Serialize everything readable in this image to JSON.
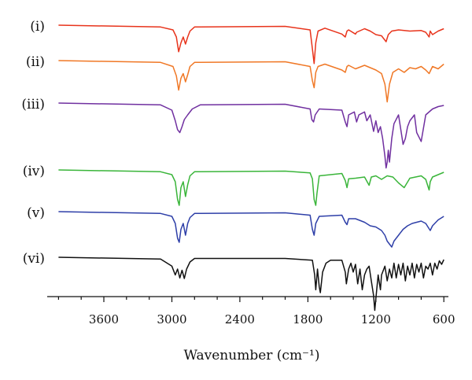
{
  "chart_data": {
    "type": "line",
    "title": "",
    "xlabel": "Wavenumber (cm⁻¹)",
    "ylabel": "",
    "xlim": [
      4100,
      560
    ],
    "x_reversed": true,
    "y_axis_shown": false,
    "grid": false,
    "legend": "none",
    "x_ticks": [
      3600,
      3000,
      2400,
      1800,
      1200,
      600
    ],
    "x_tick_labels": [
      "3600",
      "3000",
      "2400",
      "1800",
      "1200",
      "600"
    ],
    "series": [
      {
        "name": "(i)",
        "color": "#e8341c",
        "x": [
          4000,
          3100,
          2990,
          2960,
          2940,
          2920,
          2900,
          2880,
          2860,
          2840,
          2800,
          2000,
          1780,
          1760,
          1745,
          1730,
          1710,
          1650,
          1500,
          1470,
          1455,
          1440,
          1380,
          1370,
          1300,
          1250,
          1200,
          1150,
          1110,
          1090,
          1060,
          1000,
          900,
          800,
          760,
          730,
          720,
          700,
          650,
          600
        ],
        "y": [
          0,
          0.3,
          0.8,
          2.0,
          4.5,
          3.0,
          2.0,
          3.2,
          2.0,
          1.0,
          0.3,
          0.2,
          0.8,
          4.0,
          6.5,
          3.0,
          1.0,
          0.5,
          1.5,
          2.0,
          1.0,
          0.8,
          1.5,
          1.2,
          0.6,
          1.0,
          1.6,
          1.8,
          2.8,
          1.6,
          1.0,
          0.8,
          1.0,
          0.9,
          1.2,
          2.0,
          1.0,
          1.6,
          1.0,
          0.6
        ]
      },
      {
        "name": "(ii)",
        "color": "#f07826",
        "x": [
          4000,
          3100,
          2990,
          2960,
          2940,
          2920,
          2900,
          2880,
          2860,
          2840,
          2800,
          2000,
          1780,
          1760,
          1745,
          1730,
          1710,
          1650,
          1500,
          1470,
          1455,
          1440,
          1380,
          1300,
          1250,
          1200,
          1150,
          1120,
          1100,
          1080,
          1050,
          1000,
          950,
          900,
          850,
          800,
          760,
          730,
          700,
          650,
          600
        ],
        "y": [
          0,
          0.3,
          1.0,
          2.6,
          5.0,
          3.0,
          2.2,
          3.6,
          2.4,
          1.0,
          0.3,
          0.2,
          1.0,
          3.4,
          4.6,
          2.0,
          1.0,
          0.6,
          1.6,
          2.0,
          1.0,
          0.8,
          1.4,
          0.8,
          1.2,
          1.6,
          2.2,
          4.0,
          7.0,
          4.0,
          2.0,
          1.4,
          2.0,
          1.2,
          1.4,
          1.0,
          1.6,
          2.2,
          1.0,
          1.4,
          0.6
        ]
      },
      {
        "name": "(iii)",
        "color": "#7030a0",
        "x": [
          4000,
          3100,
          3000,
          2970,
          2950,
          2930,
          2910,
          2890,
          2860,
          2820,
          2750,
          2000,
          1780,
          1765,
          1750,
          1735,
          1700,
          1500,
          1470,
          1455,
          1440,
          1390,
          1370,
          1350,
          1300,
          1280,
          1250,
          1220,
          1200,
          1180,
          1160,
          1140,
          1120,
          1110,
          1100,
          1090,
          1080,
          1060,
          1040,
          1000,
          960,
          940,
          920,
          900,
          860,
          840,
          800,
          760,
          700,
          650,
          600
        ],
        "y": [
          0,
          0.3,
          1.2,
          3.0,
          4.5,
          5.0,
          4.0,
          2.8,
          2.0,
          1.0,
          0.3,
          0.2,
          1.0,
          2.8,
          3.2,
          2.0,
          1.0,
          1.2,
          3.2,
          4.0,
          2.0,
          1.5,
          3.2,
          2.0,
          1.5,
          3.0,
          2.0,
          4.8,
          3.0,
          5.0,
          4.0,
          6.0,
          9.0,
          11.0,
          10.0,
          8.0,
          10.0,
          6.0,
          3.5,
          2.0,
          7.0,
          6.0,
          4.0,
          3.0,
          2.0,
          5.0,
          6.5,
          2.0,
          1.0,
          0.6,
          0.4
        ]
      },
      {
        "name": "(iv)",
        "color": "#3ab53a",
        "x": [
          4000,
          3100,
          3000,
          2970,
          2950,
          2935,
          2920,
          2900,
          2880,
          2860,
          2840,
          2800,
          2000,
          1780,
          1760,
          1745,
          1730,
          1720,
          1700,
          1500,
          1470,
          1455,
          1440,
          1380,
          1300,
          1260,
          1240,
          1200,
          1150,
          1100,
          1050,
          1000,
          950,
          900,
          800,
          760,
          730,
          720,
          700,
          650,
          600
        ],
        "y": [
          0,
          0.3,
          0.8,
          2.0,
          5.0,
          6.0,
          3.0,
          2.0,
          4.5,
          2.5,
          1.0,
          0.3,
          0.2,
          0.5,
          1.5,
          5.0,
          6.0,
          4.0,
          1.0,
          0.6,
          1.8,
          3.0,
          1.5,
          1.4,
          1.2,
          2.6,
          1.2,
          1.0,
          1.6,
          1.0,
          1.2,
          2.2,
          3.0,
          1.4,
          1.0,
          1.6,
          3.4,
          2.0,
          1.2,
          0.8,
          0.4
        ]
      },
      {
        "name": "(v)",
        "color": "#2e3fa8",
        "x": [
          4000,
          3100,
          3000,
          2970,
          2950,
          2935,
          2920,
          2900,
          2880,
          2860,
          2840,
          2800,
          2000,
          1780,
          1760,
          1745,
          1730,
          1700,
          1500,
          1470,
          1455,
          1440,
          1380,
          1300,
          1250,
          1200,
          1150,
          1120,
          1100,
          1060,
          1040,
          1000,
          960,
          920,
          880,
          800,
          760,
          720,
          700,
          650,
          600
        ],
        "y": [
          0,
          0.3,
          0.8,
          2.0,
          4.5,
          5.2,
          3.0,
          2.0,
          4.0,
          2.0,
          1.0,
          0.3,
          0.2,
          0.6,
          3.0,
          4.0,
          2.0,
          0.8,
          0.6,
          1.8,
          2.2,
          1.2,
          1.2,
          1.8,
          2.4,
          2.6,
          3.2,
          4.0,
          5.0,
          6.0,
          5.0,
          4.0,
          3.0,
          2.4,
          2.0,
          1.6,
          2.0,
          3.2,
          2.4,
          1.4,
          0.8
        ]
      },
      {
        "name": "(vi)",
        "color": "#111111",
        "x": [
          4000,
          3100,
          3000,
          2970,
          2950,
          2930,
          2910,
          2890,
          2870,
          2840,
          2800,
          2000,
          1760,
          1740,
          1730,
          1715,
          1700,
          1690,
          1670,
          1640,
          1600,
          1500,
          1470,
          1460,
          1440,
          1420,
          1400,
          1380,
          1360,
          1340,
          1320,
          1300,
          1280,
          1260,
          1240,
          1220,
          1210,
          1200,
          1180,
          1160,
          1150,
          1120,
          1100,
          1080,
          1060,
          1040,
          1020,
          1000,
          980,
          960,
          940,
          920,
          900,
          880,
          860,
          840,
          820,
          800,
          780,
          760,
          740,
          720,
          700,
          680,
          660,
          640,
          620,
          600
        ],
        "y": [
          0,
          0.3,
          1.5,
          3.0,
          2.0,
          3.5,
          2.2,
          3.6,
          2.0,
          0.8,
          0.2,
          0.2,
          0.5,
          3.0,
          5.5,
          2.0,
          5.0,
          6.0,
          2.5,
          1.0,
          0.5,
          0.5,
          2.5,
          4.5,
          2.0,
          1.0,
          2.5,
          1.2,
          4.5,
          2.0,
          5.5,
          3.0,
          2.0,
          1.5,
          4.0,
          6.5,
          9.0,
          7.0,
          3.0,
          5.5,
          3.0,
          1.5,
          4.0,
          2.0,
          3.5,
          1.0,
          3.5,
          1.2,
          3.0,
          1.0,
          4.0,
          1.5,
          3.0,
          1.0,
          3.5,
          1.2,
          2.5,
          1.0,
          3.5,
          1.5,
          2.0,
          1.0,
          3.0,
          1.0,
          2.0,
          0.6,
          1.2,
          0.4
        ]
      }
    ]
  }
}
